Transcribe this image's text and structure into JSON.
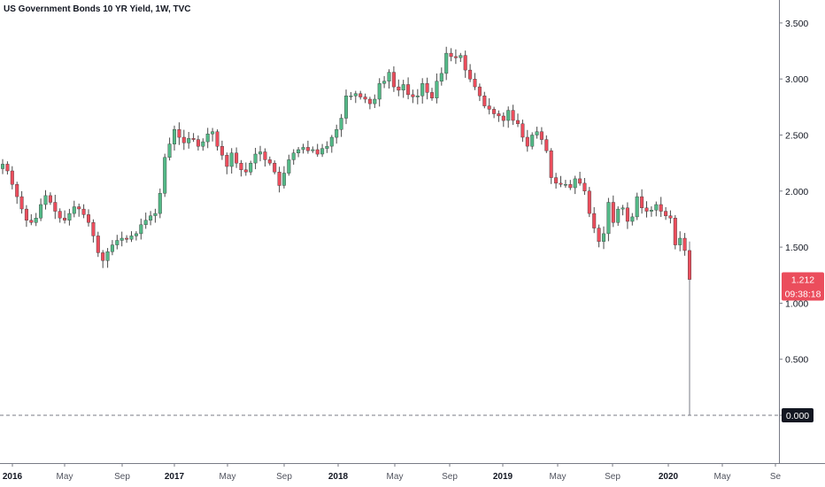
{
  "header": {
    "title": "US Government Bonds 10 YR Yield, 1W, TVC"
  },
  "colors": {
    "up": "#53b987",
    "down": "#eb4d5c",
    "axis": "#787b86",
    "grid_dash": "#787b86",
    "price_badge": "#eb4d5c",
    "zero_badge": "#131722"
  },
  "chart_data": {
    "type": "candlestick",
    "symbol": "US Government Bonds 10 YR Yield",
    "interval": "1W",
    "source": "TVC",
    "y_axis": {
      "ticks": [
        "3.500",
        "3.000",
        "2.500",
        "2.000",
        "1.500",
        "1.000",
        "0.500",
        "0.000"
      ],
      "range": [
        0,
        3.6
      ],
      "position": "right"
    },
    "x_axis": {
      "ticks": [
        {
          "label": "2016",
          "year": true
        },
        {
          "label": "May",
          "year": false
        },
        {
          "label": "Sep",
          "year": false
        },
        {
          "label": "2017",
          "year": true
        },
        {
          "label": "May",
          "year": false
        },
        {
          "label": "Sep",
          "year": false
        },
        {
          "label": "2018",
          "year": true
        },
        {
          "label": "May",
          "year": false
        },
        {
          "label": "Sep",
          "year": false
        },
        {
          "label": "2019",
          "year": true
        },
        {
          "label": "May",
          "year": false
        },
        {
          "label": "Sep",
          "year": false
        },
        {
          "label": "2020",
          "year": true
        },
        {
          "label": "May",
          "year": false
        },
        {
          "label": "Se",
          "year": false
        }
      ]
    },
    "weekly_close": [
      2.24,
      2.18,
      2.06,
      1.95,
      1.84,
      1.74,
      1.72,
      1.76,
      1.88,
      1.96,
      1.9,
      1.82,
      1.76,
      1.74,
      1.8,
      1.86,
      1.84,
      1.79,
      1.72,
      1.6,
      1.45,
      1.38,
      1.46,
      1.52,
      1.56,
      1.58,
      1.57,
      1.6,
      1.62,
      1.7,
      1.74,
      1.78,
      1.8,
      1.98,
      2.3,
      2.42,
      2.55,
      2.48,
      2.43,
      2.47,
      2.46,
      2.4,
      2.44,
      2.51,
      2.53,
      2.4,
      2.32,
      2.22,
      2.34,
      2.25,
      2.19,
      2.17,
      2.25,
      2.33,
      2.35,
      2.28,
      2.25,
      2.17,
      2.05,
      2.16,
      2.28,
      2.34,
      2.37,
      2.39,
      2.36,
      2.37,
      2.33,
      2.38,
      2.4,
      2.48,
      2.55,
      2.65,
      2.85,
      2.85,
      2.87,
      2.84,
      2.82,
      2.78,
      2.82,
      2.96,
      2.98,
      3.06,
      2.93,
      2.9,
      2.95,
      2.86,
      2.84,
      2.85,
      2.96,
      2.88,
      2.83,
      2.98,
      3.05,
      3.23,
      3.2,
      3.19,
      3.21,
      3.08,
      3.0,
      2.93,
      2.85,
      2.76,
      2.73,
      2.69,
      2.67,
      2.63,
      2.72,
      2.63,
      2.6,
      2.48,
      2.4,
      2.5,
      2.53,
      2.46,
      2.36,
      2.12,
      2.07,
      2.06,
      2.06,
      2.03,
      2.11,
      2.07,
      2.0,
      1.8,
      1.67,
      1.55,
      1.62,
      1.9,
      1.72,
      1.84,
      1.85,
      1.73,
      1.77,
      1.95,
      1.85,
      1.82,
      1.83,
      1.88,
      1.82,
      1.78,
      1.76,
      1.52,
      1.58,
      1.47,
      1.212
    ]
  },
  "price_badge": {
    "value": "1.212",
    "countdown": "09:38:18"
  },
  "zero_line": {
    "label": "0.000",
    "value": 0
  }
}
